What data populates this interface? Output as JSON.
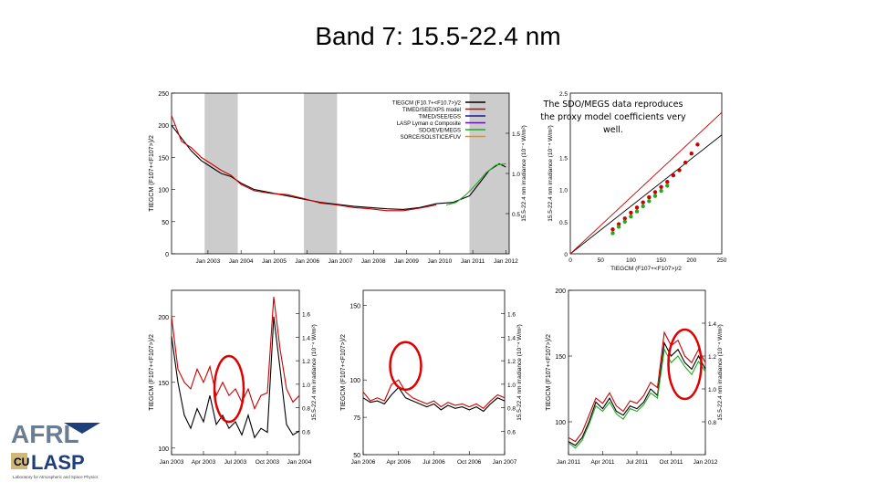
{
  "slide": {
    "title": "Band 7: 15.5-22.4 nm",
    "note": "The SDO/MEGS data reproduces the proxy model coefficients very well."
  },
  "logos": {
    "afrl": "AFRL",
    "lasp": "LASP",
    "lasp_caption": "Laboratory for Atmospheric and Space Physics"
  },
  "colors": {
    "tiegcm": "#000000",
    "timed_see": "#cc0000",
    "timed_egs": "#1a1a99",
    "lasp_lyman": "#6a0dad",
    "sdo_megs": "#22aa22",
    "sorce": "#ff8800",
    "gap_shade": "#cccccc",
    "circle": "#e00000"
  },
  "chart_data": [
    {
      "id": "main",
      "type": "line",
      "title": "",
      "xlabel": "",
      "ylabel": "TIEGCM (F107+<F107>)/2",
      "ylabel_right": "15.5-22.4 nm irradiance (10⁻⁴ W/m²)",
      "ylim": [
        0,
        250
      ],
      "yticks": [
        0,
        50,
        100,
        150,
        200,
        250
      ],
      "yticks_right": [
        "0.5",
        "1.0",
        "1.5"
      ],
      "xlim": [
        2002.0,
        2012.2
      ],
      "xticks": [
        "Jan 2003",
        "Jan 2004",
        "Jan 2005",
        "Jan 2006",
        "Jan 2007",
        "Jan 2008",
        "Jan 2009",
        "Jan 2010",
        "Jan 2011",
        "Jan 2012"
      ],
      "shaded_x_ranges": [
        [
          2003.0,
          2004.0
        ],
        [
          2006.0,
          2007.0
        ],
        [
          2011.0,
          2012.2
        ]
      ],
      "legend_position": "top-right",
      "series": [
        {
          "name": "TIEGCM (F10.7+<F10.7>)/2",
          "x": [
            2002.0,
            2002.3,
            2002.6,
            2002.9,
            2003.2,
            2003.5,
            2003.8,
            2004.1,
            2004.5,
            2005.0,
            2005.5,
            2006.0,
            2006.5,
            2007.0,
            2007.5,
            2008.0,
            2008.5,
            2009.0,
            2009.5,
            2010.0,
            2010.5,
            2011.0,
            2011.3,
            2011.6,
            2011.9,
            2012.1
          ],
          "y": [
            200,
            180,
            160,
            145,
            135,
            125,
            120,
            110,
            100,
            95,
            90,
            85,
            80,
            77,
            74,
            72,
            70,
            69,
            72,
            78,
            80,
            90,
            110,
            130,
            140,
            135
          ]
        },
        {
          "name": "TIMED/SEE/XPS model",
          "x": [
            2002.0,
            2002.3,
            2002.6,
            2002.9,
            2003.2,
            2003.5,
            2003.8,
            2004.1,
            2004.5,
            2005.0,
            2005.5,
            2006.0,
            2006.5,
            2007.0,
            2007.5,
            2008.0,
            2008.5,
            2009.0,
            2009.5,
            2010.0
          ],
          "y": [
            215,
            175,
            165,
            150,
            140,
            130,
            122,
            108,
            98,
            94,
            92,
            86,
            79,
            76,
            72,
            70,
            67,
            67,
            71,
            76
          ]
        },
        {
          "name": "TIMED/SEE/EGS",
          "x": [],
          "y": []
        },
        {
          "name": "LASP Lyman α Composite",
          "x": [],
          "y": []
        },
        {
          "name": "SDO/EVE/MEGS",
          "x": [
            2010.3,
            2010.6,
            2010.9,
            2011.2,
            2011.5,
            2011.8,
            2012.1
          ],
          "y": [
            76,
            80,
            92,
            108,
            126,
            138,
            140
          ]
        },
        {
          "name": "SORCE/SOLSTICE/FUV",
          "x": [],
          "y": []
        }
      ]
    },
    {
      "id": "scatter",
      "type": "scatter",
      "title": "",
      "xlabel": "TIEGCM (F107+<F107>)/2",
      "ylabel": "15.5-22.4 nm irradiance (10⁻⁴ W/m²)",
      "xlim": [
        0,
        250
      ],
      "xticks": [
        0,
        50,
        100,
        150,
        200,
        250
      ],
      "ylim": [
        0,
        2.5
      ],
      "yticks": [
        "0",
        "0.5",
        "1.0",
        "1.5",
        "2.5"
      ],
      "series": [
        {
          "name": "TIMED/SEE",
          "x": [
            70,
            80,
            90,
            100,
            110,
            120,
            130,
            140,
            150,
            160,
            170,
            180,
            190,
            200,
            210
          ],
          "y": [
            0.38,
            0.46,
            0.55,
            0.64,
            0.72,
            0.8,
            0.88,
            0.96,
            1.04,
            1.12,
            1.22,
            1.3,
            1.42,
            1.56,
            1.7
          ]
        },
        {
          "name": "SDO/MEGS",
          "x": [
            70,
            80,
            90,
            100,
            110,
            120,
            130,
            140,
            150,
            160
          ],
          "y": [
            0.32,
            0.42,
            0.5,
            0.58,
            0.66,
            0.74,
            0.82,
            0.9,
            0.98,
            1.06
          ]
        }
      ],
      "fit_lines": [
        {
          "color": "black",
          "x": [
            0,
            250
          ],
          "y": [
            -0.05,
            1.85
          ]
        },
        {
          "color": "red",
          "x": [
            0,
            250
          ],
          "y": [
            -0.2,
            2.2
          ]
        }
      ]
    },
    {
      "id": "zoom-2003",
      "type": "line",
      "ylabel": "TIEGCM (F107+<F107>)/2",
      "ylabel_right": "15.5-22.4 nm irradiance (10⁻⁴ W/m²)",
      "ylim": [
        95,
        220
      ],
      "yticks": [
        100,
        150,
        200
      ],
      "yticks_right": [
        "0.6",
        "0.8",
        "1.0",
        "1.2",
        "1.4",
        "1.6"
      ],
      "xticks": [
        "Jan 2003",
        "Apr 2003",
        "Jul 2003",
        "Oct 2003",
        "Jan 2004"
      ],
      "series": [
        {
          "name": "TIEGCM",
          "x": [
            0,
            0.05,
            0.1,
            0.15,
            0.2,
            0.25,
            0.3,
            0.35,
            0.4,
            0.45,
            0.5,
            0.55,
            0.6,
            0.65,
            0.7,
            0.75,
            0.8,
            0.85,
            0.9,
            0.95,
            1.0
          ],
          "y": [
            185,
            150,
            125,
            115,
            130,
            120,
            140,
            118,
            125,
            115,
            120,
            110,
            125,
            108,
            115,
            112,
            200,
            160,
            118,
            110,
            113
          ]
        },
        {
          "name": "TIMED/SEE",
          "x": [
            0,
            0.05,
            0.1,
            0.15,
            0.2,
            0.25,
            0.3,
            0.35,
            0.4,
            0.45,
            0.5,
            0.55,
            0.6,
            0.65,
            0.7,
            0.75,
            0.8,
            0.85,
            0.9,
            0.95,
            1.0
          ],
          "y": [
            200,
            160,
            150,
            145,
            160,
            150,
            162,
            140,
            150,
            140,
            145,
            135,
            145,
            130,
            140,
            142,
            215,
            175,
            145,
            135,
            140
          ]
        }
      ]
    },
    {
      "id": "zoom-2006",
      "type": "line",
      "ylabel": "TIEGCM (F107+<F107>)/2",
      "ylabel_right": "15.5-22.4 nm irradiance (10⁻⁴ W/m²)",
      "ylim": [
        50,
        160
      ],
      "yticks": [
        50,
        75,
        100,
        150
      ],
      "yticks_right": [
        "0.6",
        "0.8",
        "1.0",
        "1.2",
        "1.4",
        "1.6"
      ],
      "xticks": [
        "Jan 2006",
        "Apr 2006",
        "Jul 2006",
        "Oct 2006",
        "Jan 2007"
      ],
      "series": [
        {
          "name": "TIEGCM",
          "x": [
            0,
            0.05,
            0.1,
            0.15,
            0.2,
            0.25,
            0.3,
            0.35,
            0.4,
            0.45,
            0.5,
            0.55,
            0.6,
            0.65,
            0.7,
            0.75,
            0.8,
            0.85,
            0.9,
            0.95,
            1.0
          ],
          "y": [
            88,
            85,
            86,
            84,
            90,
            95,
            88,
            86,
            84,
            82,
            84,
            80,
            83,
            81,
            82,
            80,
            82,
            79,
            84,
            88,
            86
          ]
        },
        {
          "name": "TIMED/SEE",
          "x": [
            0,
            0.05,
            0.1,
            0.15,
            0.2,
            0.25,
            0.3,
            0.35,
            0.4,
            0.45,
            0.5,
            0.55,
            0.6,
            0.65,
            0.7,
            0.75,
            0.8,
            0.85,
            0.9,
            0.95,
            1.0
          ],
          "y": [
            92,
            86,
            88,
            86,
            97,
            100,
            92,
            88,
            86,
            84,
            86,
            82,
            85,
            83,
            84,
            82,
            84,
            81,
            86,
            90,
            88
          ]
        }
      ]
    },
    {
      "id": "zoom-2011",
      "type": "line",
      "ylabel": "TIEGCM (F107+<F107>)/2",
      "ylabel_right": "15.5-22.4 nm irradiance (10⁻⁴ W/m²)",
      "ylim": [
        75,
        200
      ],
      "yticks": [
        100,
        150,
        200
      ],
      "yticks_right": [
        "0.8",
        "1.0",
        "1.2",
        "1.4"
      ],
      "xticks": [
        "Jan 2011",
        "Apr 2011",
        "Jul 2011",
        "Oct 2011",
        "Jan 2012"
      ],
      "series": [
        {
          "name": "TIEGCM",
          "x": [
            0,
            0.05,
            0.1,
            0.15,
            0.2,
            0.25,
            0.3,
            0.35,
            0.4,
            0.45,
            0.5,
            0.55,
            0.6,
            0.65,
            0.7,
            0.75,
            0.8,
            0.85,
            0.9,
            0.95,
            1.0
          ],
          "y": [
            85,
            82,
            88,
            100,
            115,
            110,
            118,
            108,
            105,
            112,
            110,
            115,
            125,
            120,
            160,
            150,
            155,
            145,
            140,
            150,
            140
          ]
        },
        {
          "name": "TIMED/SEE",
          "x": [
            0,
            0.05,
            0.1,
            0.15,
            0.2,
            0.25,
            0.3,
            0.35,
            0.4,
            0.45,
            0.5,
            0.55,
            0.6,
            0.65,
            0.7,
            0.75,
            0.8,
            0.85,
            0.9,
            0.95,
            1.0
          ],
          "y": [
            88,
            85,
            92,
            105,
            118,
            114,
            122,
            112,
            108,
            116,
            114,
            120,
            130,
            126,
            168,
            158,
            162,
            150,
            145,
            155,
            145
          ]
        },
        {
          "name": "SDO/MEGS",
          "x": [
            0,
            0.05,
            0.1,
            0.15,
            0.2,
            0.25,
            0.3,
            0.35,
            0.4,
            0.45,
            0.5,
            0.55,
            0.6,
            0.65,
            0.7,
            0.75,
            0.8,
            0.85,
            0.9,
            0.95,
            1.0
          ],
          "y": [
            84,
            80,
            86,
            98,
            112,
            108,
            115,
            106,
            102,
            110,
            108,
            113,
            122,
            118,
            155,
            145,
            150,
            142,
            136,
            146,
            138
          ]
        }
      ]
    }
  ]
}
